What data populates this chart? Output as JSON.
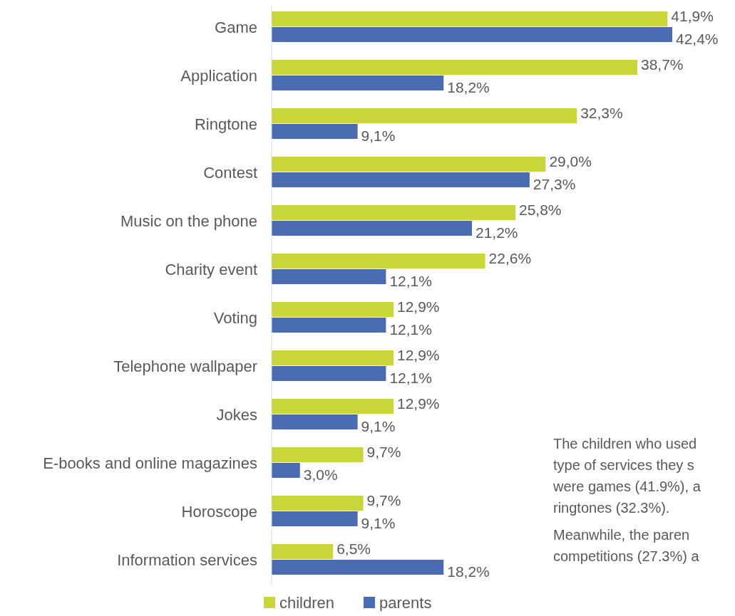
{
  "chart_data": {
    "type": "bar",
    "orientation": "horizontal",
    "legend": "bottom",
    "categories": [
      "Game",
      "Application",
      "Ringtone",
      "Contest",
      "Music on the phone",
      "Charity event",
      "Voting",
      "Telephone wallpaper",
      "Jokes",
      "E-books and online magazines",
      "Horoscope",
      "Information services"
    ],
    "series": [
      {
        "name": "children",
        "color": "#c9d63a",
        "values": [
          41.9,
          38.7,
          32.3,
          29.0,
          25.8,
          22.6,
          12.9,
          12.9,
          12.9,
          9.7,
          9.7,
          6.5
        ],
        "value_labels": [
          "41,9%",
          "38,7%",
          "32,3%",
          "29,0%",
          "25,8%",
          "22,6%",
          "12,9%",
          "12,9%",
          "12,9%",
          "9,7%",
          "9,7%",
          "6,5%"
        ]
      },
      {
        "name": "parents",
        "color": "#4a6cb3",
        "values": [
          42.4,
          18.2,
          9.1,
          27.3,
          21.2,
          12.1,
          12.1,
          12.1,
          9.1,
          3.0,
          9.1,
          18.2
        ],
        "value_labels": [
          "42,4%",
          "18,2%",
          "9,1%",
          "27,3%",
          "21,2%",
          "12,1%",
          "12,1%",
          "12,1%",
          "9,1%",
          "3,0%",
          "9,1%",
          "18,2%"
        ]
      }
    ],
    "annotations": [
      "The children who used\ntype of services they s\nwere games (41.9%), a\nringtones (32.3%).",
      "Meanwhile, the paren\ncompetitions (27.3%) a"
    ]
  }
}
